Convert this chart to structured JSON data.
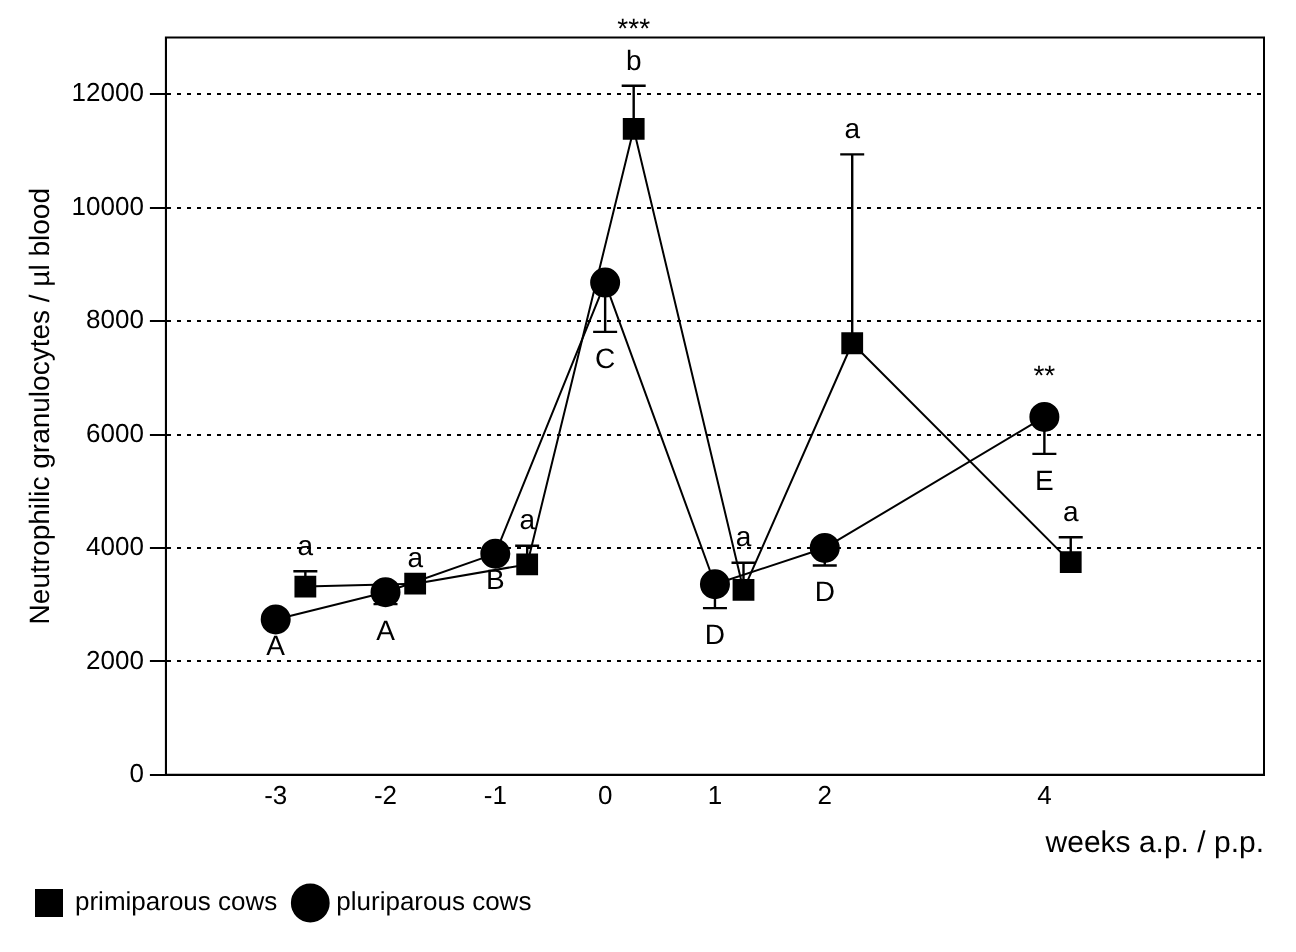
{
  "chart_data": {
    "type": "line",
    "xlabel": "weeks a.p. / p.p.",
    "ylabel": "Neutrophilic granulocytes / µl blood",
    "xlim": [
      -4,
      6
    ],
    "xticks": [
      -3,
      -2,
      -1,
      0,
      1,
      2,
      4
    ],
    "ylim": [
      0,
      13000
    ],
    "yticks": [
      0,
      2000,
      4000,
      6000,
      8000,
      10000,
      12000
    ],
    "grid": "y",
    "legend": "bottom",
    "line_style": "solid",
    "series": [
      {
        "name": "primiparous cows",
        "color": "#000000",
        "marker": "square",
        "x": [
          -2.73,
          -1.73,
          -0.71,
          0.26,
          1.26,
          2.25,
          4.24
        ],
        "values": [
          3320,
          3370,
          3710,
          11390,
          3260,
          7610,
          3750
        ],
        "errors": [
          [
            3320,
            3590
          ],
          null,
          [
            3710,
            4040
          ],
          [
            11390,
            12150
          ],
          [
            3260,
            3740
          ],
          [
            7610,
            10940
          ],
          [
            3750,
            4190
          ]
        ]
      },
      {
        "name": "pluriparous cows",
        "color": "#000000",
        "marker": "circle",
        "x": [
          -3,
          -2,
          -1,
          0,
          1,
          2,
          4
        ],
        "values": [
          2740,
          3220,
          3900,
          8680,
          3360,
          4000,
          6310
        ],
        "errors": [
          null,
          [
            3010,
            3220
          ],
          null,
          [
            7810,
            8680
          ],
          [
            2940,
            3360
          ],
          [
            3690,
            4000
          ],
          [
            5660,
            6310
          ]
        ]
      }
    ],
    "annotations": [
      {
        "text": "a",
        "x": -2.73,
        "y": 3320
      },
      {
        "text": "a",
        "x": -1.73,
        "y": 3370
      },
      {
        "text": "a",
        "x": -0.71,
        "y": 3710
      },
      {
        "text": "b",
        "x": 0.26,
        "y": 11390
      },
      {
        "text": "a",
        "x": 1.26,
        "y": 3260
      },
      {
        "text": "a",
        "x": 2.25,
        "y": 10940
      },
      {
        "text": "a",
        "x": 4.24,
        "y": 3750
      },
      {
        "text": "***",
        "x": 0.26,
        "y": 12150
      },
      {
        "text": "A",
        "x": -3,
        "y": 2740
      },
      {
        "text": "A",
        "x": -2,
        "y": 3220
      },
      {
        "text": "B",
        "x": -1,
        "y": 3900
      },
      {
        "text": "C",
        "x": 0,
        "y": 8680
      },
      {
        "text": "D",
        "x": 1,
        "y": 3360
      },
      {
        "text": "D",
        "x": 2,
        "y": 4000
      },
      {
        "text": "E",
        "x": 4,
        "y": 6310
      },
      {
        "text": "**",
        "x": 4,
        "y": 6310
      }
    ]
  }
}
